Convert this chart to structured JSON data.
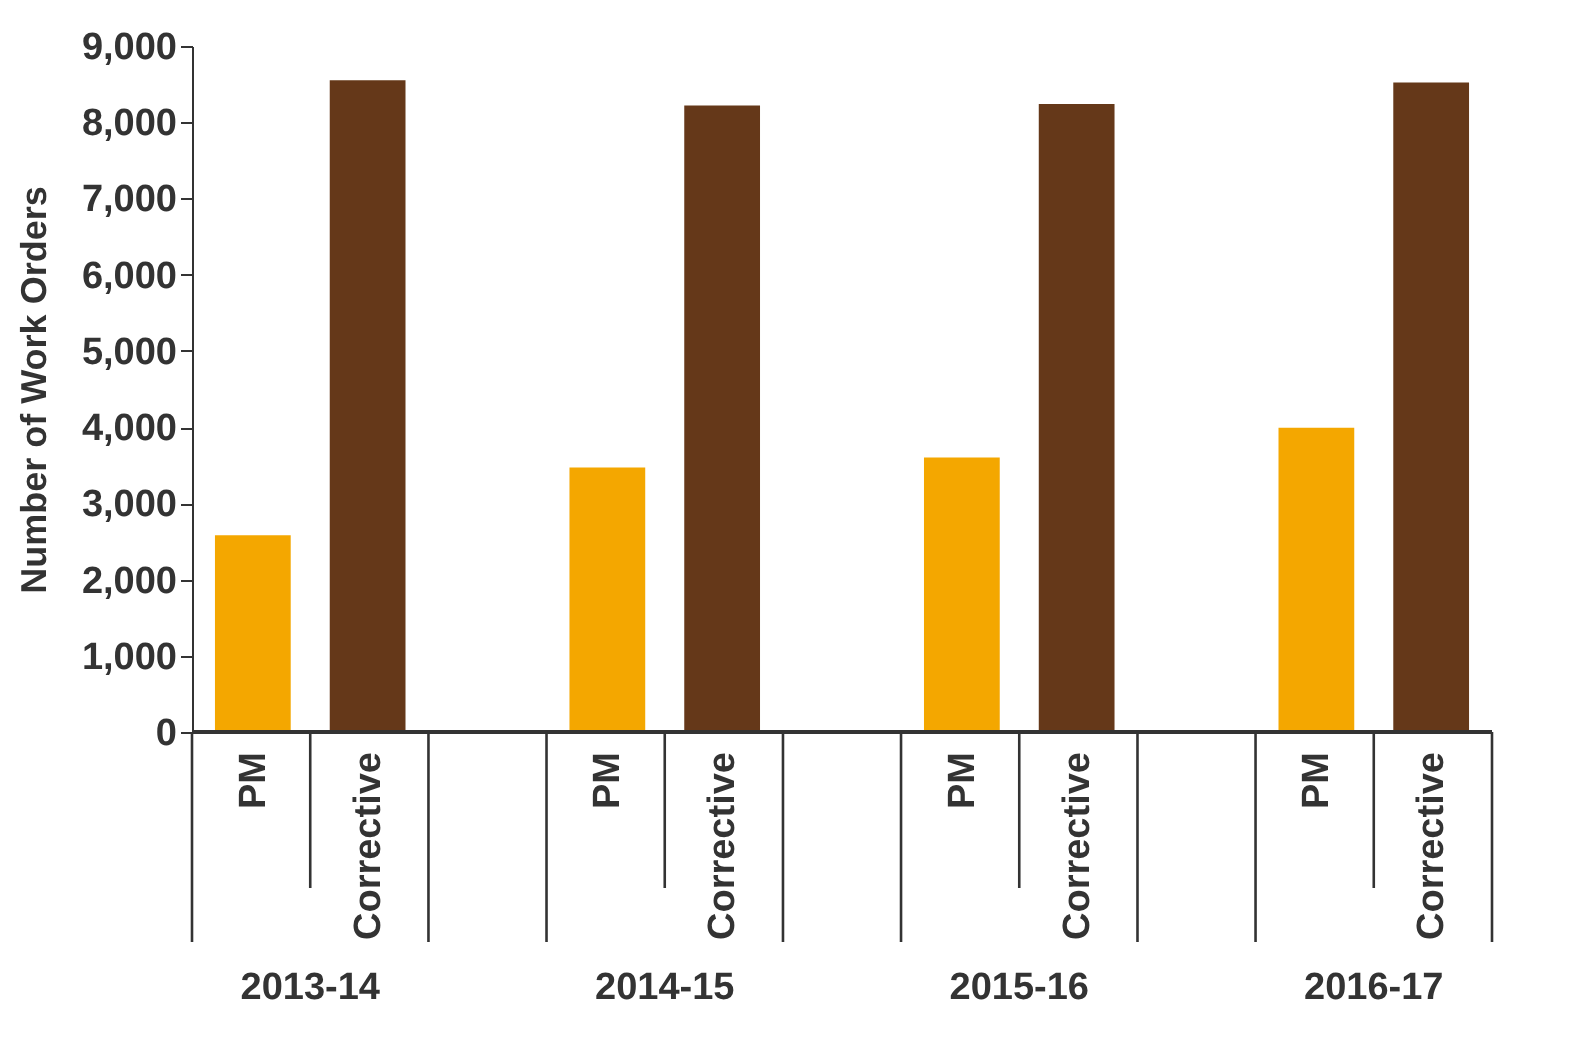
{
  "chart_data": {
    "type": "bar",
    "ylabel": "Number of Work Orders",
    "categories": [
      "2013-14",
      "2014-15",
      "2015-16",
      "2016-17"
    ],
    "series": [
      {
        "name": "PM",
        "color": "#f4a700",
        "values": [
          2580,
          3470,
          3600,
          3990
        ]
      },
      {
        "name": "Corrective",
        "color": "#653819",
        "values": [
          8550,
          8220,
          8240,
          8520
        ]
      }
    ],
    "ylim": [
      0,
      9000
    ],
    "yticks": [
      0,
      {
        "value": 1000,
        "label": "1,000"
      },
      {
        "value": 2000,
        "label": "2,000"
      },
      {
        "value": 3000,
        "label": "3,000"
      },
      {
        "value": 4000,
        "label": "4,000"
      },
      {
        "value": 5000,
        "label": "5,000"
      },
      {
        "value": 6000,
        "label": "6,000"
      },
      {
        "value": 7000,
        "label": "7,000"
      },
      {
        "value": 8000,
        "label": "8,000"
      },
      {
        "value": 9000,
        "label": "9,000"
      }
    ],
    "grid": false
  }
}
